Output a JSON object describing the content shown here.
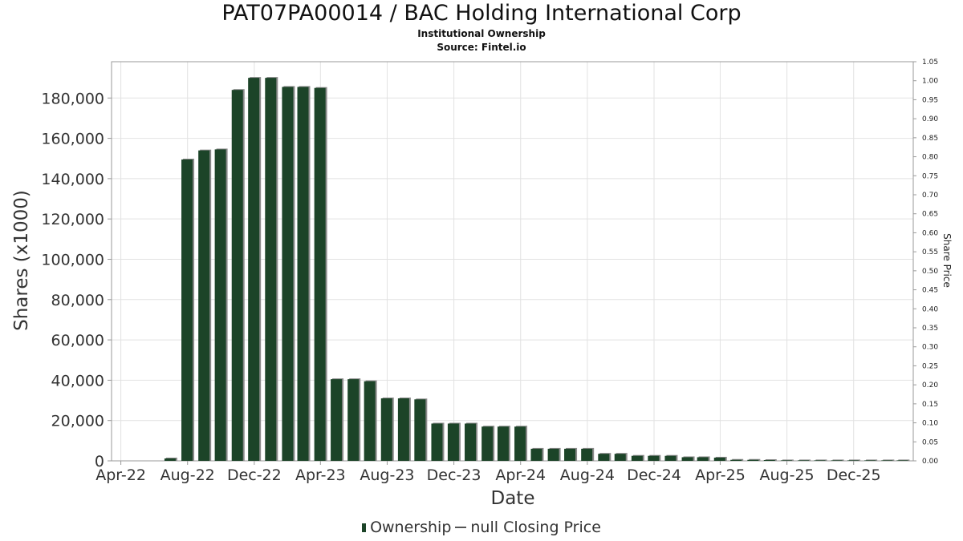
{
  "title": "PAT07PA00014 / BAC Holding International Corp",
  "subtitle": "Institutional Ownership",
  "source": "Source: Fintel.io",
  "colors": {
    "bar": "#1c4428",
    "bar_shadow": "#8a8a8a",
    "grid": "#e2e2e2",
    "axis": "#999999"
  },
  "legend": {
    "ownership_label": "Ownership",
    "price_label": "null Closing Price"
  },
  "chart_data": {
    "type": "bar",
    "xlabel": "Date",
    "ylabel": "Shares (x1000)",
    "ylabel_right": "Share Price",
    "x_tick_labels": [
      "Apr-22",
      "Aug-22",
      "Dec-22",
      "Apr-23",
      "Aug-23",
      "Dec-23",
      "Apr-24",
      "Aug-24",
      "Dec-24",
      "Apr-25",
      "Aug-25",
      "Dec-25"
    ],
    "ylim": [
      0,
      198000
    ],
    "yticks": [
      0,
      20000,
      40000,
      60000,
      80000,
      100000,
      120000,
      140000,
      160000,
      180000
    ],
    "ytick_labels": [
      "0",
      "20,000",
      "40,000",
      "60,000",
      "80,000",
      "100,000",
      "120,000",
      "140,000",
      "160,000",
      "180,000"
    ],
    "y2lim": [
      0,
      1.05
    ],
    "y2ticks": [
      "0.00",
      "0.05",
      "0.10",
      "0.15",
      "0.20",
      "0.25",
      "0.30",
      "0.35",
      "0.40",
      "0.45",
      "0.50",
      "0.55",
      "0.60",
      "0.65",
      "0.70",
      "0.75",
      "0.80",
      "0.85",
      "0.90",
      "0.95",
      "1.00",
      "1.05"
    ],
    "grid": true,
    "legend_position": "bottom",
    "series": [
      {
        "name": "Ownership",
        "x": [
          "2022-06-30",
          "2022-07-31",
          "2022-08-31",
          "2022-09-30",
          "2022-10-31",
          "2022-11-30",
          "2022-12-31",
          "2023-01-31",
          "2023-02-28",
          "2023-03-31",
          "2023-04-30",
          "2023-05-31",
          "2023-06-30",
          "2023-07-31",
          "2023-08-31",
          "2023-09-30",
          "2023-10-31",
          "2023-11-30",
          "2023-12-31",
          "2024-01-31",
          "2024-02-29",
          "2024-03-31",
          "2024-04-30",
          "2024-05-31",
          "2024-06-30",
          "2024-07-31",
          "2024-08-31",
          "2024-09-30",
          "2024-10-31",
          "2024-11-30",
          "2024-12-31",
          "2025-01-31",
          "2025-02-28",
          "2025-03-31",
          "2025-04-30",
          "2025-05-31",
          "2025-06-30",
          "2025-07-31",
          "2025-08-31",
          "2025-09-30",
          "2025-10-31",
          "2025-11-30",
          "2025-12-31",
          "2026-01-31",
          "2026-02-28"
        ],
        "values": [
          1200,
          149500,
          154000,
          154500,
          184000,
          190000,
          190000,
          185500,
          185500,
          185000,
          40500,
          40500,
          39500,
          31000,
          31000,
          30500,
          18500,
          18500,
          18500,
          17000,
          17000,
          17000,
          6000,
          6000,
          6000,
          6000,
          3500,
          3500,
          2500,
          2500,
          2500,
          1800,
          1800,
          1600,
          500,
          500,
          400,
          150,
          150,
          150,
          150,
          150,
          150,
          150,
          150
        ]
      }
    ]
  }
}
